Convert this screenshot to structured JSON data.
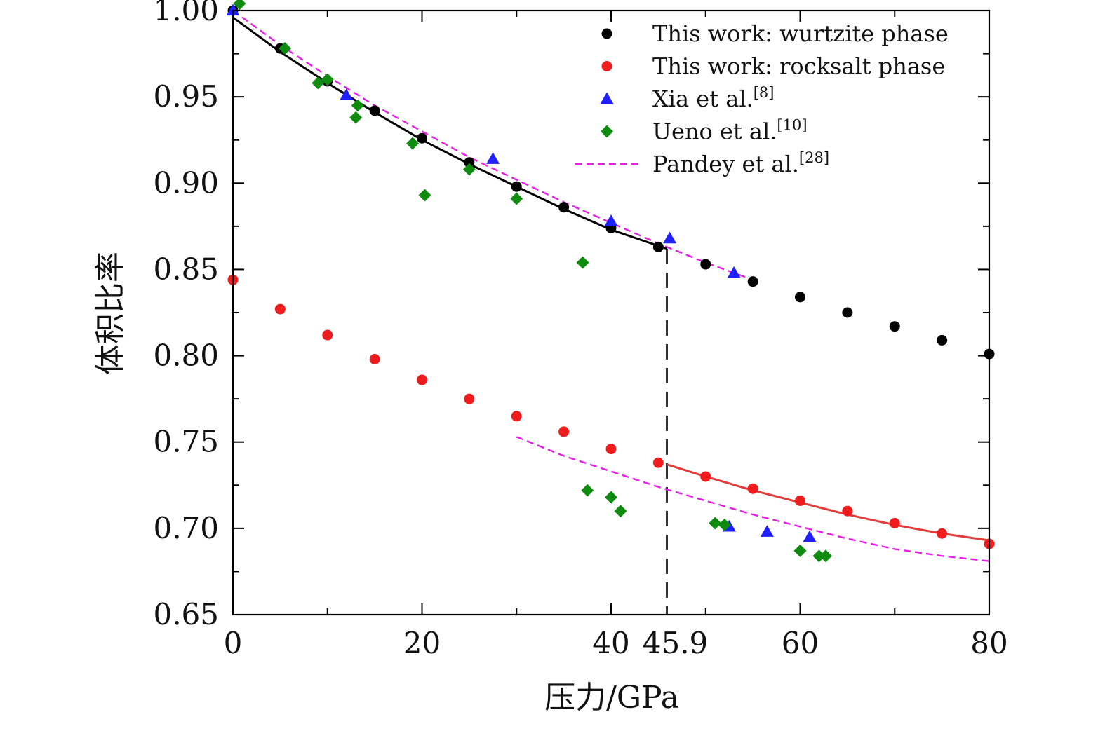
{
  "chart_data": {
    "type": "scatter",
    "title": "",
    "xlabel": "压力/GPa",
    "ylabel": "体积比率",
    "xlim": [
      0,
      80
    ],
    "ylim": [
      0.65,
      1.0
    ],
    "xticks": [
      0,
      20,
      40,
      45.9,
      60,
      80
    ],
    "xtick_labels": [
      "0",
      "20",
      "40",
      "45.9",
      "60",
      "80"
    ],
    "yticks": [
      0.65,
      0.7,
      0.75,
      0.8,
      0.85,
      0.9,
      0.95,
      1.0
    ],
    "ytick_labels": [
      "0.65",
      "0.70",
      "0.75",
      "0.80",
      "0.85",
      "0.90",
      "0.95",
      "1.00"
    ],
    "vline": {
      "x": 45.9,
      "y_from": 0.65,
      "y_to": 0.862,
      "style": "dashed",
      "color": "#000000"
    },
    "legend_position": "top-right",
    "series": [
      {
        "name": "This work: wurtzite phase",
        "legend_text": "This work: wurtzite phase",
        "legend_sup": "",
        "marker": "circle",
        "color": "#000000",
        "x": [
          0,
          5,
          10,
          15,
          20,
          25,
          30,
          35,
          40,
          45,
          50,
          55,
          60,
          65,
          70,
          75,
          80
        ],
        "y": [
          1.0,
          0.978,
          0.959,
          0.942,
          0.926,
          0.912,
          0.898,
          0.886,
          0.874,
          0.863,
          0.853,
          0.843,
          0.834,
          0.825,
          0.817,
          0.809,
          0.801
        ]
      },
      {
        "name": "This work: rocksalt phase",
        "legend_text": "This work: rocksalt phase",
        "legend_sup": "",
        "marker": "circle",
        "color": "#ee1c1c",
        "x": [
          0,
          5,
          10,
          15,
          20,
          25,
          30,
          35,
          40,
          45,
          50,
          55,
          60,
          65,
          70,
          75,
          80
        ],
        "y": [
          0.844,
          0.827,
          0.812,
          0.798,
          0.786,
          0.775,
          0.765,
          0.756,
          0.746,
          0.738,
          0.73,
          0.723,
          0.716,
          0.71,
          0.703,
          0.697,
          0.691
        ]
      },
      {
        "name": "Xia et al.[8]",
        "legend_text": "Xia et al.",
        "legend_sup": "[8]",
        "marker": "triangle",
        "color": "#1f1fff",
        "x": [
          0,
          12,
          27.5,
          40,
          46.2,
          53,
          52.5,
          56.5,
          61
        ],
        "y": [
          1.0,
          0.951,
          0.914,
          0.878,
          0.868,
          0.848,
          0.701,
          0.698,
          0.695
        ]
      },
      {
        "name": "Ueno et al.[10]",
        "legend_text": "Ueno et al.",
        "legend_sup": "[10]",
        "marker": "diamond",
        "color": "#0f8c0f",
        "x": [
          0.7,
          5.5,
          9,
          10,
          13,
          13.2,
          19,
          20.3,
          25,
          30,
          37,
          37.5,
          40,
          41,
          51,
          52,
          60,
          62,
          62.7
        ],
        "y": [
          1.004,
          0.978,
          0.958,
          0.96,
          0.938,
          0.945,
          0.923,
          0.893,
          0.908,
          0.891,
          0.854,
          0.722,
          0.718,
          0.71,
          0.703,
          0.702,
          0.687,
          0.684,
          0.684
        ]
      },
      {
        "name": "Pandey et al.[28]",
        "legend_text": "Pandey et al.",
        "legend_sup": "[28]",
        "marker": "dashed-line",
        "color": "#e61ee6",
        "segments": [
          {
            "x": [
              0,
              5,
              10,
              15,
              20,
              25,
              30,
              35,
              40,
              45,
              50,
              55
            ],
            "y": [
              1.0,
              0.98,
              0.962,
              0.945,
              0.93,
              0.915,
              0.902,
              0.889,
              0.877,
              0.865,
              0.854,
              0.844
            ]
          },
          {
            "x": [
              30,
              35,
              40,
              45,
              50,
              55,
              60,
              65,
              70,
              75,
              80
            ],
            "y": [
              0.753,
              0.742,
              0.733,
              0.724,
              0.716,
              0.708,
              0.701,
              0.694,
              0.688,
              0.684,
              0.681
            ]
          }
        ]
      }
    ],
    "fit_lines": [
      {
        "name": "wurtzite fit",
        "color": "#000000",
        "style": "solid",
        "x": [
          0,
          5,
          10,
          15,
          20,
          25,
          30,
          35,
          40,
          45.9
        ],
        "y": [
          0.996,
          0.976,
          0.958,
          0.941,
          0.925,
          0.911,
          0.898,
          0.885,
          0.873,
          0.862
        ]
      },
      {
        "name": "rocksalt fit",
        "color": "#e23c3c",
        "style": "solid",
        "x": [
          45.9,
          50,
          55,
          60,
          65,
          70,
          75,
          80
        ],
        "y": [
          0.737,
          0.73,
          0.722,
          0.715,
          0.708,
          0.702,
          0.697,
          0.693
        ]
      }
    ]
  }
}
